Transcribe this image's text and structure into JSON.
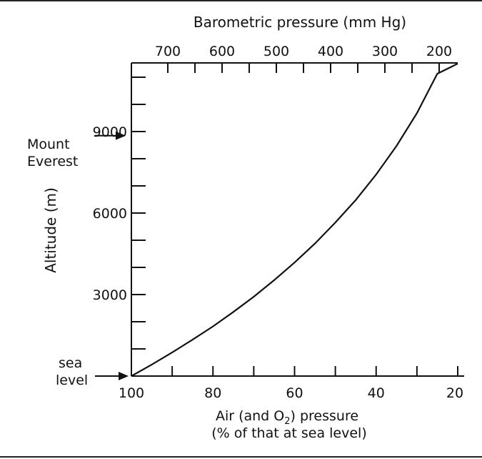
{
  "chart_data": {
    "type": "line",
    "top_axis": {
      "label": "Barometric pressure (mm Hg)",
      "ticks": [
        700,
        600,
        500,
        400,
        300,
        200
      ],
      "minor_ticks": [
        700,
        650,
        600,
        550,
        500,
        450,
        400,
        350,
        300,
        250,
        200
      ]
    },
    "x_axis": {
      "label_line1": "Air (and O",
      "label_sub": "2",
      "label_line1_end": ") pressure",
      "label_line2": "(% of that at sea level)",
      "ticks": [
        100,
        80,
        60,
        40,
        20
      ],
      "minor_ticks": [
        100,
        90,
        80,
        70,
        60,
        50,
        40,
        30,
        20
      ],
      "range": [
        100,
        20
      ]
    },
    "y_axis": {
      "label": "Altitude (m)",
      "ticks": [
        3000,
        6000,
        9000
      ],
      "minor_ticks": [
        1000,
        2000,
        3000,
        4000,
        5000,
        6000,
        7000,
        8000,
        9000,
        10000,
        11000
      ],
      "range": [
        0,
        11500
      ]
    },
    "series": [
      {
        "x": [
          100,
          95,
          90,
          85,
          80,
          75,
          70,
          65,
          60,
          55,
          50,
          45,
          40,
          35,
          30,
          25,
          20
        ],
        "y": [
          0,
          425,
          870,
          1340,
          1830,
          2360,
          2920,
          3530,
          4180,
          4880,
          5650,
          6480,
          7420,
          8470,
          9680,
          11130,
          11500
        ]
      }
    ],
    "annotations": {
      "everest_line1": "Mount",
      "everest_line2": "Everest",
      "everest_altitude": 8848,
      "sea_line1": "sea",
      "sea_line2": "level",
      "sea_altitude": 0
    },
    "grid": false
  }
}
